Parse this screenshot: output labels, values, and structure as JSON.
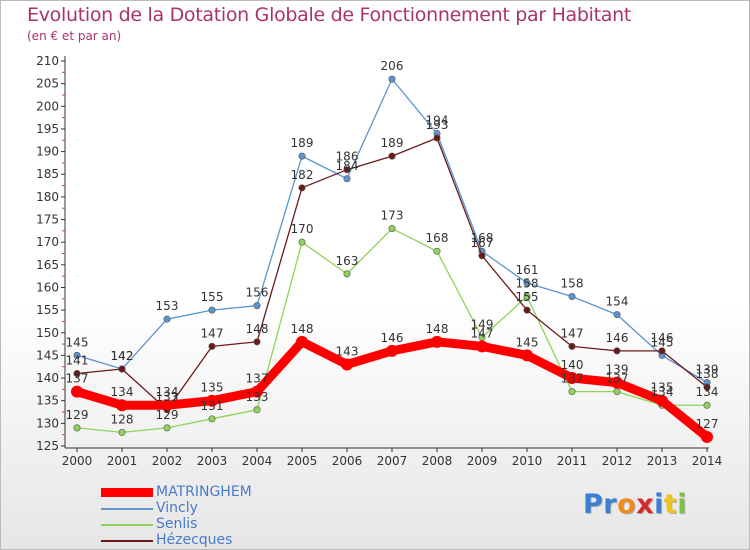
{
  "header": {
    "title": "Evolution de la Dotation Globale de Fonctionnement par Habitant",
    "subtitle": "(en € et par an)"
  },
  "logo": {
    "text": "Proxiti",
    "colors": [
      "#3b7fd4",
      "#3b7fd4",
      "#f08a1c",
      "#d42a2a",
      "#3b7fd4",
      "#f0c31c",
      "#7cc242"
    ]
  },
  "chart_data": {
    "type": "line",
    "title": "Evolution de la Dotation Globale de Fonctionnement par Habitant",
    "subtitle": "(en € et par an)",
    "xlabel": "",
    "ylabel": "",
    "ylim": [
      125,
      210
    ],
    "ytick_step": 5,
    "grid": false,
    "legend_position": "bottom-left",
    "x": [
      "2000",
      "2001",
      "2002",
      "2003",
      "2004",
      "2005",
      "2006",
      "2007",
      "2008",
      "2009",
      "2010",
      "2011",
      "2012",
      "2013",
      "2014"
    ],
    "series": [
      {
        "name": "MATRINGHEM",
        "color": "#ff0000",
        "emphasis": true,
        "values": [
          137,
          134,
          134,
          135,
          137,
          148,
          143,
          146,
          148,
          147,
          145,
          140,
          139,
          135,
          127
        ]
      },
      {
        "name": "Vincly",
        "color": "#5b95cf",
        "emphasis": false,
        "values": [
          145,
          142,
          153,
          155,
          156,
          189,
          184,
          206,
          194,
          168,
          161,
          158,
          154,
          145,
          139
        ]
      },
      {
        "name": "Senlis",
        "color": "#8fd35a",
        "emphasis": false,
        "values": [
          129,
          128,
          129,
          131,
          133,
          170,
          163,
          173,
          168,
          149,
          158,
          137,
          137,
          134,
          134
        ]
      },
      {
        "name": "Hézecques",
        "color": "#6b1a1a",
        "emphasis": false,
        "values": [
          141,
          142,
          133,
          147,
          148,
          182,
          186,
          189,
          193,
          167,
          155,
          147,
          146,
          146,
          138
        ]
      }
    ]
  }
}
